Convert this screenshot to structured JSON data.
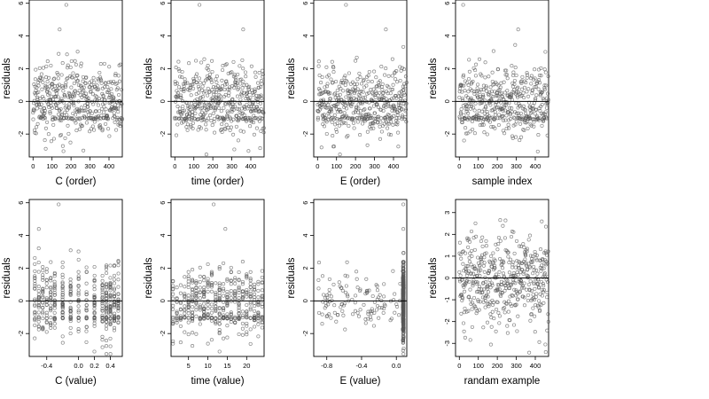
{
  "figure": {
    "colors": {
      "points": "#555555",
      "axes": "#000000",
      "background": "#ffffff",
      "zero_line": "#000000"
    }
  },
  "chart_data": [
    {
      "type": "scatter",
      "xlabel": "C (order)",
      "ylabel": "residuals",
      "xlim": [
        -20,
        470
      ],
      "ylim": [
        -3.4,
        6.2
      ],
      "xticks": [
        0,
        100,
        200,
        300,
        400
      ],
      "xtick_labels": [
        "0",
        "100",
        "200",
        "300",
        "400"
      ],
      "yticks": [
        -2,
        0,
        2,
        4,
        6
      ],
      "ytick_labels": [
        "-2",
        "0",
        "2",
        "4",
        "6"
      ],
      "hline": 0,
      "grid": false,
      "n": 470,
      "x_kind": "index",
      "pattern": "order",
      "highlights": [
        [
          140,
          4.4
        ],
        [
          175,
          5.9
        ]
      ]
    },
    {
      "type": "scatter",
      "xlabel": "time (order)",
      "ylabel": "residuals",
      "xlim": [
        -20,
        470
      ],
      "ylim": [
        -3.4,
        6.2
      ],
      "xticks": [
        0,
        100,
        200,
        300,
        400
      ],
      "xtick_labels": [
        "0",
        "100",
        "200",
        "300",
        "400"
      ],
      "yticks": [
        -2,
        0,
        2,
        4,
        6
      ],
      "ytick_labels": [
        "-2",
        "0",
        "2",
        "4",
        "6"
      ],
      "hline": 0,
      "grid": false,
      "n": 470,
      "x_kind": "index",
      "pattern": "order",
      "highlights": [
        [
          130,
          5.9
        ],
        [
          360,
          4.4
        ]
      ]
    },
    {
      "type": "scatter",
      "xlabel": "E (order)",
      "ylabel": "residuals",
      "xlim": [
        -20,
        470
      ],
      "ylim": [
        -3.4,
        6.2
      ],
      "xticks": [
        0,
        100,
        200,
        300,
        400
      ],
      "xtick_labels": [
        "0",
        "100",
        "200",
        "300",
        "400"
      ],
      "yticks": [
        -2,
        0,
        2,
        4,
        6
      ],
      "ytick_labels": [
        "-2",
        "0",
        "2",
        "4",
        "6"
      ],
      "hline": 0,
      "grid": false,
      "n": 470,
      "x_kind": "index",
      "pattern": "order",
      "highlights": [
        [
          150,
          5.9
        ],
        [
          360,
          4.4
        ]
      ]
    },
    {
      "type": "scatter",
      "xlabel": "sample index",
      "ylabel": "residuals",
      "xlim": [
        -20,
        470
      ],
      "ylim": [
        -3.4,
        6.2
      ],
      "xticks": [
        0,
        100,
        200,
        300,
        400
      ],
      "xtick_labels": [
        "0",
        "100",
        "200",
        "300",
        "400"
      ],
      "yticks": [
        -2,
        0,
        2,
        4,
        6
      ],
      "ytick_labels": [
        "-2",
        "0",
        "2",
        "4",
        "6"
      ],
      "hline": 0,
      "grid": false,
      "n": 470,
      "x_kind": "index",
      "pattern": "order",
      "highlights": [
        [
          20,
          5.9
        ],
        [
          310,
          4.4
        ]
      ]
    },
    {
      "type": "scatter",
      "xlabel": "C (value)",
      "ylabel": "residuals",
      "xlim": [
        -0.62,
        0.55
      ],
      "ylim": [
        -3.4,
        6.2
      ],
      "xticks": [
        -0.4,
        0.0,
        0.2,
        0.4
      ],
      "xtick_labels": [
        "-0.4",
        "0.0",
        "0.2",
        "0.4"
      ],
      "yticks": [
        -2,
        0,
        2,
        4,
        6
      ],
      "ytick_labels": [
        "-2",
        "0",
        "2",
        "4",
        "6"
      ],
      "hline": 0,
      "grid": false,
      "n": 470,
      "x_kind": "value",
      "x_levels": [
        -0.55,
        -0.5,
        -0.45,
        -0.4,
        -0.35,
        -0.3,
        -0.2,
        -0.1,
        0.0,
        0.1,
        0.2,
        0.3,
        0.35,
        0.4,
        0.45,
        0.5
      ],
      "highlights": [
        [
          -0.5,
          4.4
        ],
        [
          -0.25,
          5.9
        ]
      ]
    },
    {
      "type": "scatter",
      "xlabel": "time (value)",
      "ylabel": "residuals",
      "xlim": [
        0.5,
        24.5
      ],
      "ylim": [
        -3.4,
        6.2
      ],
      "xticks": [
        5,
        10,
        15,
        20
      ],
      "xtick_labels": [
        "5",
        "10",
        "15",
        "20"
      ],
      "yticks": [
        -2,
        0,
        2,
        4,
        6
      ],
      "ytick_labels": [
        "-2",
        "0",
        "2",
        "4",
        "6"
      ],
      "hline": 0,
      "grid": false,
      "n": 470,
      "x_kind": "value",
      "x_levels": [
        1,
        2,
        3,
        4,
        5,
        6,
        7,
        8,
        9,
        10,
        11,
        12,
        13,
        14,
        15,
        16,
        17,
        18,
        19,
        20,
        21,
        22,
        23,
        24
      ],
      "highlights": [
        [
          11.5,
          5.9
        ],
        [
          14.5,
          4.4
        ]
      ]
    },
    {
      "type": "scatter",
      "xlabel": "E (value)",
      "ylabel": "residuals",
      "xlim": [
        -0.95,
        0.12
      ],
      "ylim": [
        -3.4,
        6.2
      ],
      "xticks": [
        -0.8,
        -0.4,
        0.0
      ],
      "xtick_labels": [
        "-0.8",
        "-0.4",
        "0.0"
      ],
      "yticks": [
        -2,
        0,
        2,
        4,
        6
      ],
      "ytick_labels": [
        "-2",
        "0",
        "2",
        "4",
        "6"
      ],
      "hline": 0,
      "grid": false,
      "n": 470,
      "x_kind": "e_value",
      "highlights": [
        [
          0.08,
          5.9
        ],
        [
          0.08,
          4.4
        ]
      ]
    },
    {
      "type": "scatter",
      "xlabel": "randam example",
      "ylabel": "residuals",
      "xlim": [
        -20,
        470
      ],
      "ylim": [
        -3.6,
        3.6
      ],
      "xticks": [
        0,
        100,
        200,
        300,
        400
      ],
      "xtick_labels": [
        "0",
        "100",
        "200",
        "300",
        "400"
      ],
      "yticks": [
        -3,
        -2,
        -1,
        0,
        1,
        2,
        3
      ],
      "ytick_labels": [
        "-3",
        "-2",
        "-1",
        "0",
        "1",
        "2",
        "3"
      ],
      "hline": 0,
      "grid": false,
      "n": 470,
      "x_kind": "index",
      "pattern": "random",
      "highlights": [
        [
          455,
          -3.4
        ]
      ]
    }
  ]
}
